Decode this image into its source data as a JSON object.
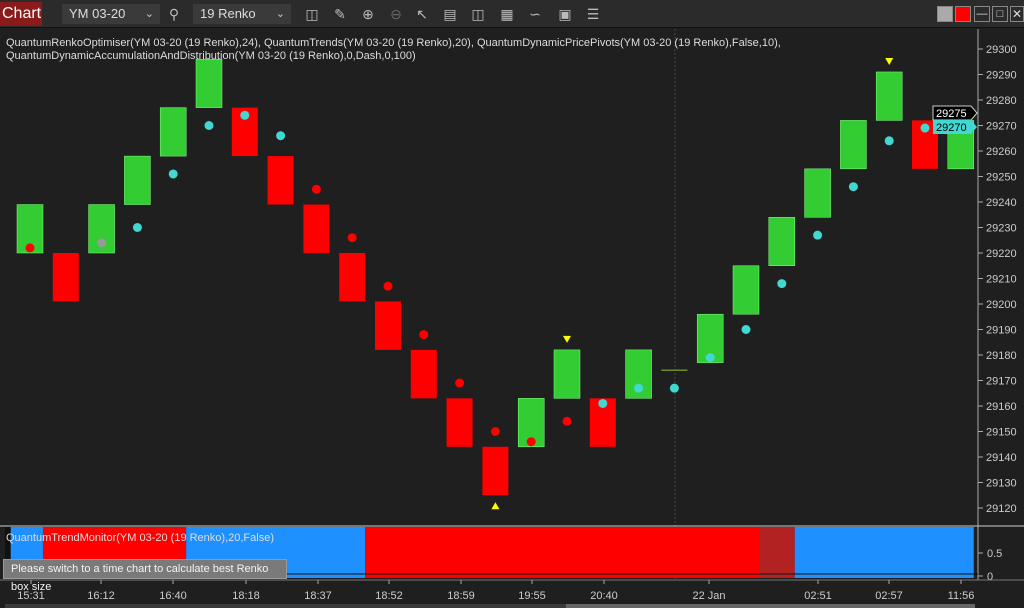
{
  "toolbar": {
    "tab": "Chart",
    "instrument": "YM 03-20",
    "period": "19 Renko",
    "icons": [
      "search-icon",
      "bar-style-icon",
      "pencil-icon",
      "zoom-in-icon",
      "zoom-out-icon",
      "pointer-icon",
      "data-box-icon",
      "properties-icon",
      "indicators-icon",
      "strategy-icon",
      "templates-icon",
      "menu-list-icon"
    ],
    "window_buttons": [
      "gray-square",
      "red-square",
      "minimize",
      "maximize",
      "close"
    ]
  },
  "indicators": {
    "line1": "QuantumRenkoOptimiser(YM 03-20 (19 Renko),24), QuantumTrends(YM 03-20 (19 Renko),20), QuantumDynamicPricePivots(YM 03-20 (19 Renko),False,10),",
    "line2": "QuantumDynamicAccumulationAndDistribution(YM 03-20 (19 Renko),0,Dash,0,100)"
  },
  "colors": {
    "up": "#33cc33",
    "down": "#ff0000",
    "cyan": "#40d8d0",
    "trend_up": "#1e90ff",
    "trend_down": "#ff0000",
    "trend_weak": "#b22222",
    "triangle": "#ffff00"
  },
  "chart_data": {
    "type": "renko",
    "price_axis": {
      "ticks": [
        29300,
        29290,
        29280,
        29270,
        29260,
        29250,
        29240,
        29230,
        29220,
        29210,
        29200,
        29190,
        29180,
        29170,
        29160,
        29150,
        29140,
        29130,
        29120
      ],
      "range": [
        29112,
        29310
      ]
    },
    "last_price": "29275",
    "current_value": "29270",
    "bricks": [
      {
        "dir": "up",
        "low": 29220,
        "high": 29239
      },
      {
        "dir": "down",
        "low": 29201,
        "high": 29220
      },
      {
        "dir": "up",
        "low": 29220,
        "high": 29239
      },
      {
        "dir": "up",
        "low": 29239,
        "high": 29258
      },
      {
        "dir": "up",
        "low": 29258,
        "high": 29277
      },
      {
        "dir": "up",
        "low": 29277,
        "high": 29296
      },
      {
        "dir": "down",
        "low": 29258,
        "high": 29277
      },
      {
        "dir": "down",
        "low": 29239,
        "high": 29258
      },
      {
        "dir": "down",
        "low": 29220,
        "high": 29239
      },
      {
        "dir": "down",
        "low": 29201,
        "high": 29220
      },
      {
        "dir": "down",
        "low": 29182,
        "high": 29201
      },
      {
        "dir": "down",
        "low": 29163,
        "high": 29182
      },
      {
        "dir": "down",
        "low": 29144,
        "high": 29163
      },
      {
        "dir": "down",
        "low": 29125,
        "high": 29144
      },
      {
        "dir": "up",
        "low": 29144,
        "high": 29163
      },
      {
        "dir": "up",
        "low": 29163,
        "high": 29182
      },
      {
        "dir": "down",
        "low": 29144,
        "high": 29163
      },
      {
        "dir": "up",
        "low": 29163,
        "high": 29182
      },
      {
        "dir": "flat",
        "low": 29174,
        "high": 29174
      },
      {
        "dir": "up",
        "low": 29177,
        "high": 29196
      },
      {
        "dir": "up",
        "low": 29196,
        "high": 29215
      },
      {
        "dir": "up",
        "low": 29215,
        "high": 29234
      },
      {
        "dir": "up",
        "low": 29234,
        "high": 29253
      },
      {
        "dir": "up",
        "low": 29253,
        "high": 29272
      },
      {
        "dir": "up",
        "low": 29272,
        "high": 29291
      },
      {
        "dir": "down",
        "low": 29253,
        "high": 29272
      },
      {
        "dir": "up",
        "low": 29253,
        "high": 29272
      }
    ],
    "dots": [
      [
        29222,
        "red"
      ],
      null,
      [
        29224,
        "gray"
      ],
      [
        29230,
        "cyan"
      ],
      [
        29251,
        "cyan"
      ],
      [
        29270,
        "cyan"
      ],
      [
        29274,
        "cyan"
      ],
      [
        29266,
        "cyan"
      ],
      [
        29245,
        "red"
      ],
      [
        29226,
        "red"
      ],
      [
        29207,
        "red"
      ],
      [
        29188,
        "red"
      ],
      [
        29169,
        "red"
      ],
      [
        29150,
        "red"
      ],
      [
        29146,
        "red"
      ],
      [
        29154,
        "red"
      ],
      [
        29161,
        "cyan"
      ],
      [
        29167,
        "cyan"
      ],
      [
        29167,
        "cyan"
      ],
      [
        29179,
        "cyan"
      ],
      [
        29190,
        "cyan"
      ],
      [
        29208,
        "cyan"
      ],
      [
        29227,
        "cyan"
      ],
      [
        29246,
        "cyan"
      ],
      [
        29264,
        "cyan"
      ],
      [
        29269,
        "cyan"
      ],
      [
        29269,
        "cyan"
      ]
    ],
    "pivots": [
      {
        "brick": 13,
        "type": "low"
      },
      {
        "brick": 15,
        "type": "high"
      },
      {
        "brick": 24,
        "type": "high"
      }
    ],
    "time_labels": [
      "15:31",
      "16:12",
      "16:40",
      "18:18",
      "18:37",
      "18:52",
      "18:59",
      "19:55",
      "20:40",
      "22 Jan",
      "02:51",
      "02:57",
      "11:56"
    ],
    "trend_monitor": {
      "label": "QuantumTrendMonitor(YM 03-20 (19 Renko),20,False)",
      "ticks": [
        "0.5",
        "0"
      ],
      "segments": [
        [
          "none",
          0,
          0.3
        ],
        [
          "up",
          0.3,
          1.2
        ],
        [
          "down",
          1.2,
          5.2
        ],
        [
          "up",
          5.2,
          10.2
        ],
        [
          "down",
          10.2,
          21.2
        ],
        [
          "weak",
          21.2,
          22.2
        ],
        [
          "up",
          22.2,
          27.2
        ]
      ]
    }
  },
  "hint": "Please switch to a time chart to calculate best Renko box size"
}
